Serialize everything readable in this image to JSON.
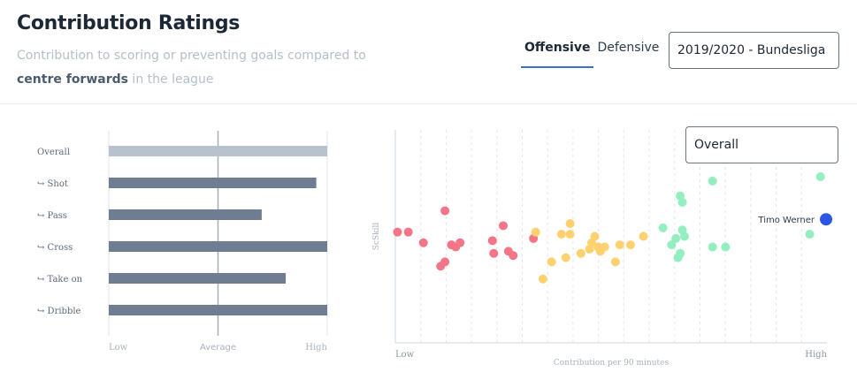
{
  "header": {
    "title": "Contribution Ratings",
    "subtitle_pre": "Contribution to scoring or preventing goals compared to ",
    "subtitle_bold": "centre forwards",
    "subtitle_post": " in the league"
  },
  "tabs": [
    {
      "label": "Offensive",
      "active": true
    },
    {
      "label": "Defensive",
      "active": false
    }
  ],
  "season_select": {
    "value": "2019/2020 - Bundesliga"
  },
  "metric_select": {
    "value": "Overall"
  },
  "chart_data": [
    {
      "type": "bar",
      "orientation": "horizontal",
      "categories": [
        "Overall",
        "↪ Shot",
        "↪ Pass",
        "↪ Cross",
        "↪ Take on",
        "↪ Dribble"
      ],
      "values": [
        1.0,
        0.95,
        0.7,
        1.0,
        0.81,
        1.0
      ],
      "xlim": [
        0,
        1
      ],
      "xticks": [
        "Low",
        "Average",
        "High"
      ],
      "colors": {
        "overall": "#b9c1cc",
        "sub": "#6f7d92"
      }
    },
    {
      "type": "scatter",
      "ylabel": "ScSkill",
      "xlabel": "Contribution per 90 minutes",
      "xticks": [
        "Low",
        "High"
      ],
      "highlight": {
        "name": "Timo Werner",
        "x": 0.998,
        "y": 0.58,
        "color": "#2d55e6"
      },
      "groups": [
        {
          "color": "#f47488",
          "points": [
            [
              0.005,
              0.52
            ],
            [
              0.03,
              0.52
            ],
            [
              0.065,
              0.47
            ],
            [
              0.115,
              0.62
            ],
            [
              0.13,
              0.46
            ],
            [
              0.14,
              0.45
            ],
            [
              0.15,
              0.47
            ],
            [
              0.225,
              0.48
            ],
            [
              0.25,
              0.55
            ],
            [
              0.32,
              0.49
            ],
            [
              0.115,
              0.38
            ],
            [
              0.228,
              0.42
            ],
            [
              0.262,
              0.43
            ],
            [
              0.273,
              0.41
            ],
            [
              0.105,
              0.36
            ]
          ]
        },
        {
          "color": "#fdd170",
          "points": [
            [
              0.325,
              0.52
            ],
            [
              0.385,
              0.51
            ],
            [
              0.405,
              0.51
            ],
            [
              0.405,
              0.56
            ],
            [
              0.395,
              0.4
            ],
            [
              0.362,
              0.38
            ],
            [
              0.342,
              0.3
            ],
            [
              0.43,
              0.42
            ],
            [
              0.45,
              0.44
            ],
            [
              0.455,
              0.47
            ],
            [
              0.462,
              0.5
            ],
            [
              0.47,
              0.45
            ],
            [
              0.475,
              0.43
            ],
            [
              0.485,
              0.45
            ],
            [
              0.51,
              0.38
            ],
            [
              0.52,
              0.46
            ],
            [
              0.545,
              0.46
            ],
            [
              0.575,
              0.5
            ]
          ]
        },
        {
          "color": "#93eec0",
          "points": [
            [
              0.62,
              0.54
            ],
            [
              0.64,
              0.46
            ],
            [
              0.65,
              0.49
            ],
            [
              0.655,
              0.4
            ],
            [
              0.66,
              0.42
            ],
            [
              0.665,
              0.53
            ],
            [
              0.67,
              0.5
            ],
            [
              0.665,
              0.66
            ],
            [
              0.66,
              0.69
            ],
            [
              0.735,
              0.76
            ],
            [
              0.735,
              0.45
            ],
            [
              0.765,
              0.45
            ],
            [
              0.96,
              0.51
            ],
            [
              0.985,
              0.78
            ]
          ]
        }
      ]
    }
  ]
}
